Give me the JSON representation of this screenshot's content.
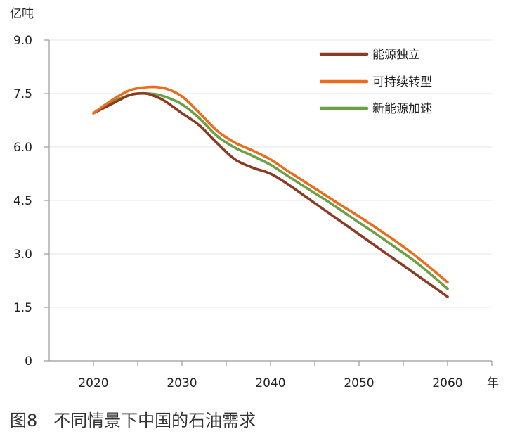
{
  "caption": {
    "figure_no": "图8",
    "title": "不同情景下中国的石油需求"
  },
  "chart_data": {
    "type": "line",
    "y_unit": "亿吨",
    "x_unit": "年",
    "ylim": [
      0,
      9.0
    ],
    "xlim": [
      2015,
      2065
    ],
    "y_ticks": [
      "0",
      "1.5",
      "3.0",
      "4.5",
      "6.0",
      "7.5",
      "9.0"
    ],
    "y_tick_values": [
      0,
      1.5,
      3.0,
      4.5,
      6.0,
      7.5,
      9.0
    ],
    "x_ticks": [
      "2020",
      "2030",
      "2040",
      "2050",
      "2060"
    ],
    "x_tick_values": [
      2020,
      2030,
      2040,
      2050,
      2060
    ],
    "grid": true,
    "legend_position": "top-right",
    "colors": {
      "axis": "#9a9a9a",
      "grid": "#e6e6e6"
    },
    "series": [
      {
        "name": "能源独立",
        "color": "#8b3a24",
        "x": [
          2020,
          2022,
          2024,
          2025,
          2026,
          2027,
          2028,
          2030,
          2032,
          2034,
          2036,
          2038,
          2040,
          2042,
          2044,
          2046,
          2048,
          2050,
          2052,
          2054,
          2056,
          2058,
          2060
        ],
        "y": [
          6.95,
          7.2,
          7.45,
          7.5,
          7.5,
          7.42,
          7.3,
          6.95,
          6.6,
          6.1,
          5.65,
          5.42,
          5.25,
          4.95,
          4.6,
          4.25,
          3.9,
          3.55,
          3.2,
          2.85,
          2.5,
          2.15,
          1.8
        ]
      },
      {
        "name": "可持续转型",
        "color": "#ec6c1c",
        "x": [
          2020,
          2022,
          2024,
          2026,
          2028,
          2030,
          2032,
          2034,
          2036,
          2038,
          2040,
          2042,
          2044,
          2046,
          2048,
          2050,
          2052,
          2054,
          2056,
          2058,
          2060
        ],
        "y": [
          6.95,
          7.3,
          7.58,
          7.68,
          7.65,
          7.42,
          6.95,
          6.45,
          6.12,
          5.9,
          5.65,
          5.32,
          5.0,
          4.68,
          4.36,
          4.05,
          3.72,
          3.38,
          3.02,
          2.62,
          2.2
        ]
      },
      {
        "name": "新能源加速",
        "color": "#6aa046",
        "x": [
          2020,
          2022,
          2024,
          2025,
          2026,
          2027,
          2028,
          2030,
          2032,
          2034,
          2036,
          2038,
          2040,
          2042,
          2044,
          2046,
          2048,
          2050,
          2052,
          2054,
          2056,
          2058,
          2060
        ],
        "y": [
          6.95,
          7.25,
          7.45,
          7.5,
          7.5,
          7.48,
          7.42,
          7.2,
          6.8,
          6.3,
          5.98,
          5.75,
          5.5,
          5.18,
          4.86,
          4.55,
          4.22,
          3.88,
          3.55,
          3.2,
          2.85,
          2.45,
          2.02
        ]
      }
    ]
  }
}
